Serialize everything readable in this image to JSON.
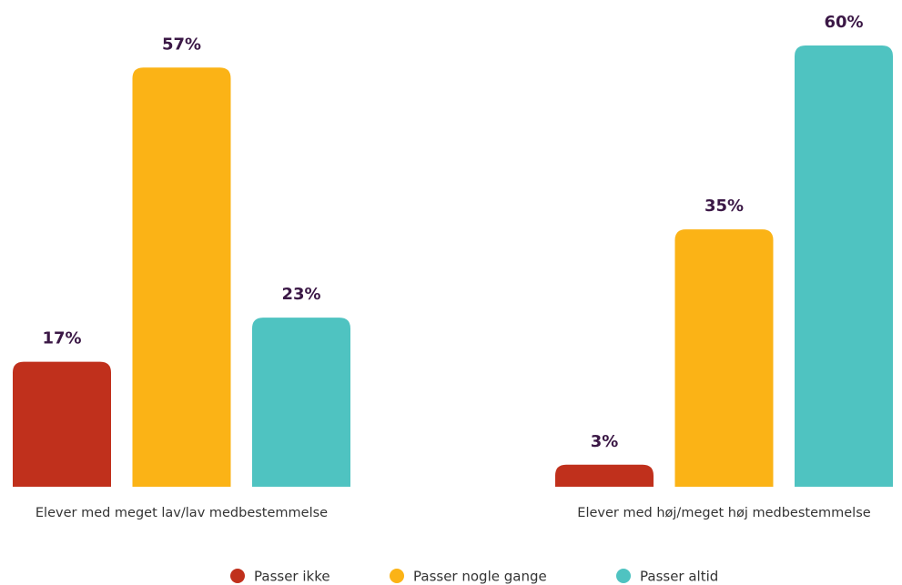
{
  "chart_data": {
    "type": "bar",
    "categories": [
      "Elever med meget lav/lav medbestemmelse",
      "Elever med høj/meget høj medbestemmelse"
    ],
    "series": [
      {
        "name": "Passer ikke",
        "color": "#c0301c",
        "values": [
          17,
          3
        ],
        "value_labels": [
          "17%",
          "3%"
        ]
      },
      {
        "name": "Passer nogle gange",
        "color": "#fbb316",
        "values": [
          57,
          35
        ],
        "value_labels": [
          "57%",
          "35%"
        ]
      },
      {
        "name": "Passer altid",
        "color": "#4fc3c1",
        "values": [
          23,
          60
        ],
        "value_labels": [
          "23%",
          "60%"
        ]
      }
    ],
    "legend": "bottom"
  }
}
